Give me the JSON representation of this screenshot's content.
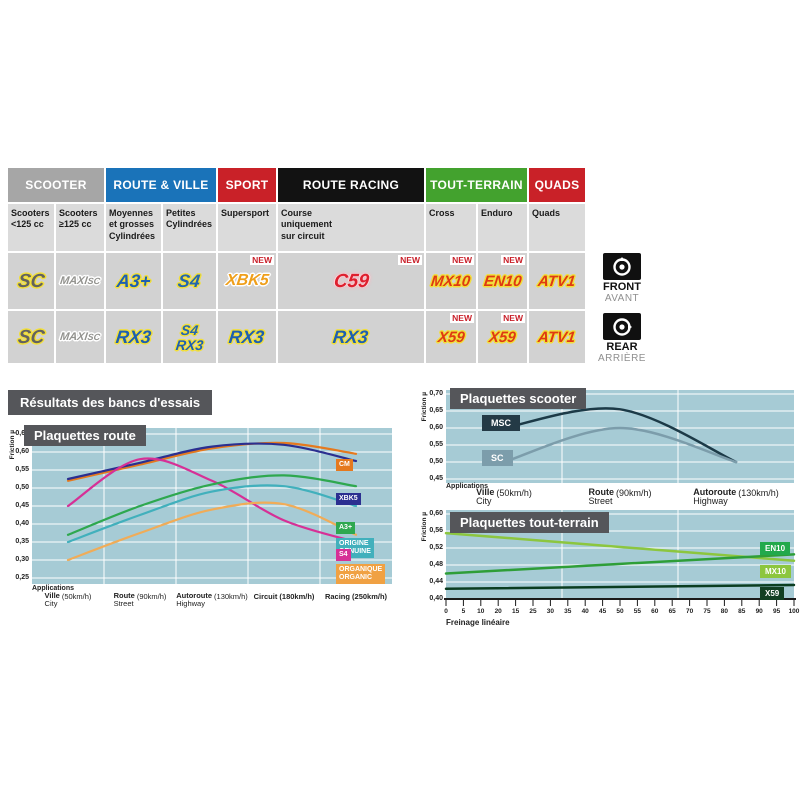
{
  "banner": {
    "title": "Résultats des bancs d'essais"
  },
  "front_rear": {
    "front": {
      "label": "FRONT",
      "sub": "AVANT"
    },
    "rear": {
      "label": "REAR",
      "sub": "ARRIÈRE"
    }
  },
  "table": {
    "new_badge": "NEW",
    "groups": [
      {
        "label": "SCOOTER",
        "color": "#A6A6A6",
        "span": 2
      },
      {
        "label": "ROUTE & VILLE",
        "color": "#1A73B9",
        "span": 2
      },
      {
        "label": "SPORT",
        "color": "#C92128",
        "span": 1
      },
      {
        "label": "ROUTE RACING",
        "color": "#121212",
        "span": 1
      },
      {
        "label": "TOUT-TERRAIN",
        "color": "#43A22E",
        "span": 2
      },
      {
        "label": "QUADS",
        "color": "#C92128",
        "span": 1
      }
    ],
    "subheaders": [
      "Scooters\n<125 cc",
      "Scooters\n≥125 cc",
      "Moyennes\net grosses\nCylindrées",
      "Petites\nCylindrées",
      "Supersport",
      "Course\nuniquement\nsur circuit",
      "Cross",
      "Enduro",
      "Quads"
    ],
    "rows": [
      {
        "name": "front",
        "cells": [
          {
            "logos": [
              {
                "t": "SC",
                "cls": "sc",
                "outline": "yellow"
              }
            ]
          },
          {
            "logos": [
              {
                "t": "MAXI",
                "t2": "SC",
                "cls": "maxisc",
                "outline": "white"
              }
            ]
          },
          {
            "logos": [
              {
                "t": "A3+",
                "cls": "blue",
                "outline": "yellow"
              }
            ]
          },
          {
            "logos": [
              {
                "t": "S4",
                "cls": "s4",
                "outline": "yellow"
              }
            ]
          },
          {
            "logos": [
              {
                "t": "XBK5",
                "cls": "xbk",
                "outline": "white"
              }
            ],
            "new": true
          },
          {
            "logos": [
              {
                "t": "C59",
                "cls": "c59"
              }
            ],
            "new": true
          },
          {
            "logos": [
              {
                "t": "MX10",
                "cls": "red",
                "outline": "yellow"
              }
            ],
            "new": true
          },
          {
            "logos": [
              {
                "t": "EN10",
                "cls": "red",
                "outline": "yellow"
              }
            ],
            "new": true
          },
          {
            "logos": [
              {
                "t": "ATV1",
                "cls": "red",
                "outline": "yellow"
              }
            ]
          }
        ]
      },
      {
        "name": "rear",
        "cells": [
          {
            "logos": [
              {
                "t": "SC",
                "cls": "sc",
                "outline": "yellow"
              }
            ]
          },
          {
            "logos": [
              {
                "t": "MAXI",
                "t2": "SC",
                "cls": "maxisc",
                "outline": "white"
              }
            ]
          },
          {
            "logos": [
              {
                "t": "RX3",
                "cls": "blue",
                "outline": "yellow"
              }
            ]
          },
          {
            "logos": [
              {
                "t": "S4",
                "cls": "s4small",
                "outline": "yellow"
              },
              {
                "t": "RX3",
                "cls": "bluesmall",
                "outline": "yellow"
              }
            ]
          },
          {
            "logos": [
              {
                "t": "RX3",
                "cls": "blue",
                "outline": "yellow"
              }
            ]
          },
          {
            "logos": [
              {
                "t": "RX3",
                "cls": "blue",
                "outline": "yellow"
              }
            ]
          },
          {
            "logos": [
              {
                "t": "X59",
                "cls": "red",
                "outline": "yellow"
              }
            ],
            "new": true
          },
          {
            "logos": [
              {
                "t": "X59",
                "cls": "red",
                "outline": "yellow"
              }
            ],
            "new": true
          },
          {
            "logos": [
              {
                "t": "ATV1",
                "cls": "red",
                "outline": "yellow"
              }
            ]
          }
        ]
      }
    ]
  },
  "chart_data": [
    {
      "type": "line",
      "title": "Plaquettes route",
      "ylabel": "Friction µ",
      "applications_label": "Applications",
      "plot_bg": "#A6CBD5",
      "ylim": [
        0.25,
        0.65
      ],
      "ytick_labels": [
        "0,65",
        "0,60",
        "0,55",
        "0,50",
        "0,45",
        "0,40",
        "0,35",
        "0,30",
        "0,25"
      ],
      "categories": [
        {
          "fr": "Ville",
          "en": "City",
          "speed": "(50km/h)"
        },
        {
          "fr": "Route",
          "en": "Street",
          "speed": "(90km/h)"
        },
        {
          "fr": "Autoroute",
          "en": "Highway",
          "speed": "(130km/h)"
        },
        {
          "fr": "Circuit",
          "en": "",
          "speed": "(180km/h)"
        },
        {
          "fr": "Racing",
          "en": "",
          "speed": "(250km/h)"
        }
      ],
      "series": [
        {
          "name": "CM",
          "color": "#E5791E",
          "values": [
            0.52,
            0.565,
            0.61,
            0.625,
            0.595
          ]
        },
        {
          "name": "XBK5",
          "color": "#2B2F90",
          "values": [
            0.525,
            0.57,
            0.615,
            0.62,
            0.575
          ]
        },
        {
          "name": "S4",
          "color": "#D63096",
          "values": [
            0.45,
            0.58,
            0.52,
            0.41,
            0.35
          ]
        },
        {
          "name": "A3+",
          "color": "#2EA84F",
          "values": [
            0.37,
            0.45,
            0.51,
            0.535,
            0.505
          ]
        },
        {
          "name": "ORIGINE/GENUINE",
          "color": "#41B0BC",
          "values": [
            0.35,
            0.425,
            0.49,
            0.505,
            0.45
          ]
        },
        {
          "name": "ORGANIQUE/ORGANIC",
          "color": "#F0AC58",
          "values": [
            0.3,
            0.375,
            0.44,
            0.455,
            0.37
          ]
        }
      ],
      "legend": [
        {
          "label": "CM",
          "bg": "#E5791E",
          "y": 0.565
        },
        {
          "label": "XBK5",
          "bg": "#2B2F90",
          "y": 0.47
        },
        {
          "label": "A3+",
          "bg": "#2EA84F",
          "y": 0.39
        },
        {
          "label": "ORIGINE\nGENUINE",
          "bg": "#41B0BC",
          "y": 0.345
        },
        {
          "label": "S4",
          "bg": "#D63096",
          "y": 0.313
        },
        {
          "label": "ORGANIQUE\nORGANIC",
          "bg": "#F0A143",
          "y": 0.272
        }
      ]
    },
    {
      "type": "line",
      "title": "Plaquettes scooter",
      "ylabel": "Friction µ",
      "applications_label": "Applications",
      "plot_bg": "#A6CBD5",
      "ylim": [
        0.45,
        0.7
      ],
      "ytick_labels": [
        "0,70",
        "0,65",
        "0,60",
        "0,55",
        "0,50",
        "0,45"
      ],
      "categories": [
        {
          "fr": "Ville",
          "en": "City",
          "speed": "(50km/h)"
        },
        {
          "fr": "Route",
          "en": "Street",
          "speed": "(90km/h)"
        },
        {
          "fr": "Autoroute",
          "en": "Highway",
          "speed": "(130km/h)"
        }
      ],
      "series": [
        {
          "name": "MSC",
          "color": "#1C3A47",
          "values": [
            0.6,
            0.655,
            0.5
          ],
          "label_bg": "#243A46",
          "label_y": 0.615
        },
        {
          "name": "SC",
          "color": "#7C9DAB",
          "values": [
            0.5,
            0.6,
            0.5
          ],
          "label_bg": "#7C9DAB",
          "label_y": 0.512
        }
      ]
    },
    {
      "type": "line",
      "title": "Plaquettes tout-terrain",
      "ylabel": "Friction µ",
      "xlabel": "Freinage linéaire",
      "plot_bg": "#A6CBD5",
      "ylim": [
        0.4,
        0.6
      ],
      "ytick_labels": [
        "0,60",
        "0,56",
        "0,52",
        "0,48",
        "0,44",
        "0,40"
      ],
      "xtick_labels": [
        "0",
        "5",
        "10",
        "20",
        "15",
        "25",
        "30",
        "35",
        "40",
        "45",
        "50",
        "55",
        "60",
        "65",
        "70",
        "75",
        "80",
        "85",
        "90",
        "95",
        "100"
      ],
      "series": [
        {
          "name": "MX10",
          "color": "#8CC63F",
          "points": [
            [
              0,
              0.555
            ],
            [
              100,
              0.49
            ]
          ],
          "label_bg": "#8CC63F",
          "label_y": 0.467
        },
        {
          "name": "EN10",
          "color": "#2E9E38",
          "points": [
            [
              0,
              0.46
            ],
            [
              100,
              0.505
            ]
          ],
          "label_bg": "#22A94C",
          "label_y": 0.52
        },
        {
          "name": "X59",
          "color": "#0B3D20",
          "points": [
            [
              0,
              0.424
            ],
            [
              100,
              0.433
            ]
          ],
          "label_bg": "#123F23",
          "label_y": 0.415
        }
      ]
    }
  ]
}
